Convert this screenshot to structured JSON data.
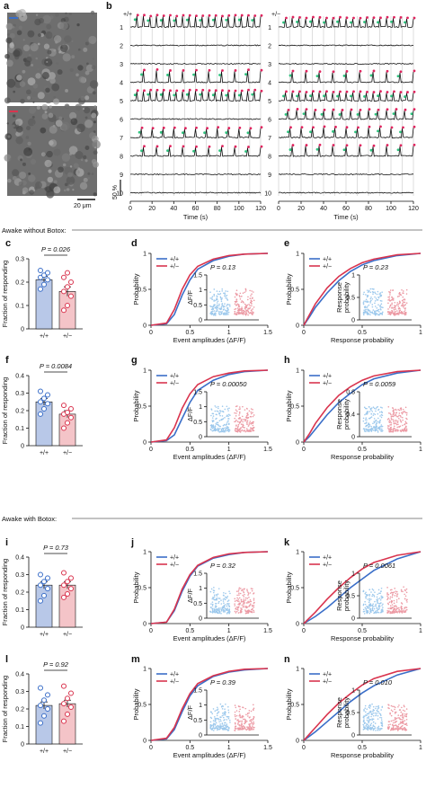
{
  "panel_letters": [
    "a",
    "b",
    "c",
    "d",
    "e",
    "f",
    "g",
    "h",
    "i",
    "j",
    "k",
    "l",
    "m",
    "n"
  ],
  "section_labels": {
    "without": "Awake without Botox:",
    "with": "Awake with Botox:"
  },
  "panel_a": {
    "scale_label": "20 μm"
  },
  "panel_b": {
    "genotype_left": "+/+",
    "genotype_right": "+/−",
    "trace_labels": [
      "1",
      "2",
      "3",
      "4",
      "5",
      "6",
      "7",
      "8",
      "9",
      "10"
    ],
    "xlabel": "Time (s)",
    "xticks": [
      0,
      20,
      40,
      60,
      80,
      100,
      120
    ],
    "scale_label": "50 %",
    "colors": {
      "trace": "#111111",
      "onset": "#2ec27e",
      "peak": "#e0245e",
      "grid": "#bdbdbd"
    }
  },
  "colors": {
    "wt": "#3a6ec8",
    "het": "#d9344e",
    "wt_fill": "#b8c8e8",
    "het_fill": "#f4c4c8",
    "wt_dot": "#9cc8ec",
    "het_dot": "#ec9aa4"
  },
  "chart_data": [
    {
      "id": "c",
      "type": "bar",
      "categories": [
        "+/+",
        "+/−"
      ],
      "values": [
        0.21,
        0.16
      ],
      "errors": [
        0.015,
        0.02
      ],
      "points": [
        [
          0.17,
          0.19,
          0.21,
          0.22,
          0.23,
          0.24,
          0.25
        ],
        [
          0.08,
          0.1,
          0.14,
          0.16,
          0.18,
          0.2,
          0.22,
          0.24
        ]
      ],
      "ylabel": "Fraction of responding",
      "ylim": [
        0,
        0.3
      ],
      "yticks": [
        0,
        0.1,
        0.2,
        0.3
      ],
      "p_label": "P = 0.026"
    },
    {
      "id": "d",
      "type": "line",
      "xlabel": "Event amplitudes (ΔF/F)",
      "ylabel": "Probability",
      "xlim": [
        0,
        1.5
      ],
      "ylim": [
        0,
        1
      ],
      "xticks": [
        0,
        0.5,
        1,
        1.5
      ],
      "yticks": [
        0,
        0.5,
        1
      ],
      "series": [
        {
          "name": "+/+",
          "x": [
            0,
            0.2,
            0.3,
            0.4,
            0.5,
            0.6,
            0.8,
            1.0,
            1.2,
            1.5
          ],
          "y": [
            0,
            0.02,
            0.15,
            0.42,
            0.63,
            0.78,
            0.9,
            0.96,
            0.99,
            1.0
          ]
        },
        {
          "name": "+/−",
          "x": [
            0,
            0.2,
            0.3,
            0.4,
            0.5,
            0.6,
            0.8,
            1.0,
            1.2,
            1.5
          ],
          "y": [
            0,
            0.03,
            0.22,
            0.5,
            0.7,
            0.82,
            0.92,
            0.97,
            0.99,
            1.0
          ]
        }
      ],
      "inset": {
        "ylabel": "ΔF/F",
        "yticks": [
          0,
          0.5,
          1,
          1.5
        ],
        "ylim": [
          0,
          1.5
        ],
        "p_label": "P = 0.13"
      }
    },
    {
      "id": "e",
      "type": "line",
      "xlabel": "Response probability",
      "ylabel": "Probability",
      "xlim": [
        0,
        1
      ],
      "ylim": [
        0,
        1
      ],
      "xticks": [
        0,
        0.5,
        1
      ],
      "yticks": [
        0,
        0.5,
        1
      ],
      "series": [
        {
          "name": "+/+",
          "x": [
            0,
            0.05,
            0.1,
            0.2,
            0.3,
            0.4,
            0.5,
            0.6,
            0.8,
            1.0
          ],
          "y": [
            0,
            0.12,
            0.25,
            0.45,
            0.62,
            0.75,
            0.84,
            0.9,
            0.97,
            1.0
          ]
        },
        {
          "name": "+/−",
          "x": [
            0,
            0.05,
            0.1,
            0.2,
            0.3,
            0.4,
            0.5,
            0.6,
            0.8,
            1.0
          ],
          "y": [
            0,
            0.15,
            0.3,
            0.52,
            0.68,
            0.79,
            0.87,
            0.92,
            0.98,
            1.0
          ]
        }
      ],
      "inset": {
        "ylabel": "Response probability",
        "yticks": [
          0,
          0.5,
          1
        ],
        "ylim": [
          0,
          1
        ],
        "p_label": "P = 0.23"
      }
    },
    {
      "id": "f",
      "type": "bar",
      "categories": [
        "+/+",
        "+/−"
      ],
      "values": [
        0.25,
        0.18
      ],
      "errors": [
        0.02,
        0.02
      ],
      "points": [
        [
          0.18,
          0.21,
          0.24,
          0.25,
          0.27,
          0.29,
          0.31
        ],
        [
          0.1,
          0.13,
          0.16,
          0.18,
          0.19,
          0.21,
          0.23
        ]
      ],
      "ylabel": "Fraction of responding",
      "ylim": [
        0,
        0.4
      ],
      "yticks": [
        0,
        0.1,
        0.2,
        0.3,
        0.4
      ],
      "p_label": "P = 0.0084"
    },
    {
      "id": "g",
      "type": "line",
      "xlabel": "Event amplitudes (ΔF/F)",
      "ylabel": "Probability",
      "xlim": [
        0,
        1.5
      ],
      "ylim": [
        0,
        1
      ],
      "xticks": [
        0,
        0.5,
        1,
        1.5
      ],
      "yticks": [
        0,
        0.5,
        1
      ],
      "series": [
        {
          "name": "+/+",
          "x": [
            0,
            0.2,
            0.3,
            0.4,
            0.5,
            0.6,
            0.8,
            1.0,
            1.2,
            1.5
          ],
          "y": [
            0,
            0.02,
            0.1,
            0.33,
            0.55,
            0.72,
            0.86,
            0.94,
            0.98,
            1.0
          ]
        },
        {
          "name": "+/−",
          "x": [
            0,
            0.2,
            0.3,
            0.4,
            0.5,
            0.6,
            0.8,
            1.0,
            1.2,
            1.5
          ],
          "y": [
            0,
            0.03,
            0.2,
            0.47,
            0.67,
            0.8,
            0.91,
            0.96,
            0.99,
            1.0
          ]
        }
      ],
      "inset": {
        "ylabel": "ΔF/F",
        "yticks": [
          0,
          0.5,
          1,
          1.5
        ],
        "ylim": [
          0,
          1.5
        ],
        "p_label": "P = 0.00050"
      }
    },
    {
      "id": "h",
      "type": "line",
      "xlabel": "Response probability",
      "ylabel": "Probability",
      "xlim": [
        0,
        1
      ],
      "ylim": [
        0,
        1
      ],
      "xticks": [
        0,
        0.5,
        1
      ],
      "yticks": [
        0,
        0.5,
        1
      ],
      "series": [
        {
          "name": "+/+",
          "x": [
            0,
            0.05,
            0.1,
            0.2,
            0.3,
            0.4,
            0.5,
            0.6,
            0.8,
            1.0
          ],
          "y": [
            0,
            0.08,
            0.18,
            0.38,
            0.55,
            0.68,
            0.8,
            0.88,
            0.96,
            1.0
          ]
        },
        {
          "name": "+/−",
          "x": [
            0,
            0.05,
            0.1,
            0.2,
            0.3,
            0.4,
            0.5,
            0.6,
            0.8,
            1.0
          ],
          "y": [
            0,
            0.12,
            0.26,
            0.48,
            0.65,
            0.77,
            0.86,
            0.92,
            0.98,
            1.0
          ]
        }
      ],
      "inset": {
        "ylabel": "Response probability",
        "yticks": [
          0,
          0.4,
          0.8
        ],
        "ylim": [
          0,
          0.8
        ],
        "p_label": "P = 0.0059"
      }
    },
    {
      "id": "i",
      "type": "bar",
      "categories": [
        "+/+",
        "+/−"
      ],
      "values": [
        0.24,
        0.24
      ],
      "errors": [
        0.02,
        0.02
      ],
      "points": [
        [
          0.15,
          0.18,
          0.22,
          0.24,
          0.26,
          0.28,
          0.3
        ],
        [
          0.17,
          0.19,
          0.22,
          0.24,
          0.26,
          0.28,
          0.31
        ]
      ],
      "ylabel": "Fraction of responding",
      "ylim": [
        0,
        0.4
      ],
      "yticks": [
        0,
        0.1,
        0.2,
        0.3,
        0.4
      ],
      "p_label": "P = 0.73"
    },
    {
      "id": "j",
      "type": "line",
      "xlabel": "Event amplitudes (ΔF/F)",
      "ylabel": "Probability",
      "xlim": [
        0,
        1.5
      ],
      "ylim": [
        0,
        1
      ],
      "xticks": [
        0,
        0.5,
        1,
        1.5
      ],
      "yticks": [
        0,
        0.5,
        1
      ],
      "series": [
        {
          "name": "+/+",
          "x": [
            0,
            0.2,
            0.3,
            0.4,
            0.5,
            0.6,
            0.8,
            1.0,
            1.2,
            1.5
          ],
          "y": [
            0,
            0.02,
            0.18,
            0.45,
            0.66,
            0.8,
            0.91,
            0.96,
            0.99,
            1.0
          ]
        },
        {
          "name": "+/−",
          "x": [
            0,
            0.2,
            0.3,
            0.4,
            0.5,
            0.6,
            0.8,
            1.0,
            1.2,
            1.5
          ],
          "y": [
            0,
            0.02,
            0.2,
            0.48,
            0.68,
            0.81,
            0.92,
            0.97,
            0.99,
            1.0
          ]
        }
      ],
      "inset": {
        "ylabel": "ΔF/F",
        "yticks": [
          0,
          0.5,
          1,
          1.5
        ],
        "ylim": [
          0,
          1.5
        ],
        "p_label": "P = 0.32"
      }
    },
    {
      "id": "k",
      "type": "line",
      "xlabel": "Response probability",
      "ylabel": "Probability",
      "xlim": [
        0,
        1
      ],
      "ylim": [
        0,
        1
      ],
      "xticks": [
        0,
        0.5,
        1
      ],
      "yticks": [
        0,
        0.5,
        1
      ],
      "series": [
        {
          "name": "+/+",
          "x": [
            0,
            0.05,
            0.1,
            0.2,
            0.3,
            0.4,
            0.5,
            0.6,
            0.8,
            1.0
          ],
          "y": [
            0,
            0.05,
            0.1,
            0.22,
            0.36,
            0.5,
            0.62,
            0.74,
            0.9,
            1.0
          ]
        },
        {
          "name": "+/−",
          "x": [
            0,
            0.05,
            0.1,
            0.2,
            0.3,
            0.4,
            0.5,
            0.6,
            0.8,
            1.0
          ],
          "y": [
            0,
            0.08,
            0.16,
            0.34,
            0.5,
            0.64,
            0.76,
            0.85,
            0.95,
            1.0
          ]
        }
      ],
      "inset": {
        "ylabel": "Response probability",
        "yticks": [
          0,
          0.5,
          1
        ],
        "ylim": [
          0,
          1
        ],
        "p_label": "P = 0.0061"
      }
    },
    {
      "id": "l",
      "type": "bar",
      "categories": [
        "+/+",
        "+/−"
      ],
      "values": [
        0.22,
        0.23
      ],
      "errors": [
        0.02,
        0.02
      ],
      "points": [
        [
          0.12,
          0.16,
          0.2,
          0.22,
          0.25,
          0.28,
          0.32
        ],
        [
          0.13,
          0.17,
          0.21,
          0.23,
          0.26,
          0.29,
          0.33
        ]
      ],
      "ylabel": "Fraction of responding",
      "ylim": [
        0,
        0.4
      ],
      "yticks": [
        0,
        0.1,
        0.2,
        0.3,
        0.4
      ],
      "p_label": "P = 0.92"
    },
    {
      "id": "m",
      "type": "line",
      "xlabel": "Event amplitudes (ΔF/F)",
      "ylabel": "Probability",
      "xlim": [
        0,
        1.5
      ],
      "ylim": [
        0,
        1
      ],
      "xticks": [
        0,
        0.5,
        1,
        1.5
      ],
      "yticks": [
        0,
        0.5,
        1
      ],
      "series": [
        {
          "name": "+/+",
          "x": [
            0,
            0.2,
            0.3,
            0.4,
            0.5,
            0.6,
            0.8,
            1.0,
            1.2,
            1.5
          ],
          "y": [
            0,
            0.02,
            0.15,
            0.4,
            0.62,
            0.76,
            0.89,
            0.95,
            0.98,
            1.0
          ]
        },
        {
          "name": "+/−",
          "x": [
            0,
            0.2,
            0.3,
            0.4,
            0.5,
            0.6,
            0.8,
            1.0,
            1.2,
            1.5
          ],
          "y": [
            0,
            0.03,
            0.18,
            0.44,
            0.65,
            0.79,
            0.9,
            0.96,
            0.99,
            1.0
          ]
        }
      ],
      "inset": {
        "ylabel": "ΔF/F",
        "yticks": [
          0,
          0.5,
          1,
          1.5
        ],
        "ylim": [
          0,
          1.5
        ],
        "p_label": "P = 0.39"
      }
    },
    {
      "id": "n",
      "type": "line",
      "xlabel": "Response probability",
      "ylabel": "Probability",
      "xlim": [
        0,
        1
      ],
      "ylim": [
        0,
        1
      ],
      "xticks": [
        0,
        0.5,
        1
      ],
      "yticks": [
        0,
        0.5,
        1
      ],
      "series": [
        {
          "name": "+/+",
          "x": [
            0,
            0.05,
            0.1,
            0.2,
            0.3,
            0.4,
            0.5,
            0.6,
            0.8,
            1.0
          ],
          "y": [
            0,
            0.06,
            0.12,
            0.26,
            0.4,
            0.54,
            0.66,
            0.76,
            0.91,
            1.0
          ]
        },
        {
          "name": "+/−",
          "x": [
            0,
            0.05,
            0.1,
            0.2,
            0.3,
            0.4,
            0.5,
            0.6,
            0.8,
            1.0
          ],
          "y": [
            0,
            0.09,
            0.18,
            0.36,
            0.52,
            0.65,
            0.77,
            0.86,
            0.96,
            1.0
          ]
        }
      ],
      "inset": {
        "ylabel": "Response probability",
        "yticks": [
          0,
          0.5,
          1
        ],
        "ylim": [
          0,
          1
        ],
        "p_label": "P = 0.010"
      }
    }
  ]
}
